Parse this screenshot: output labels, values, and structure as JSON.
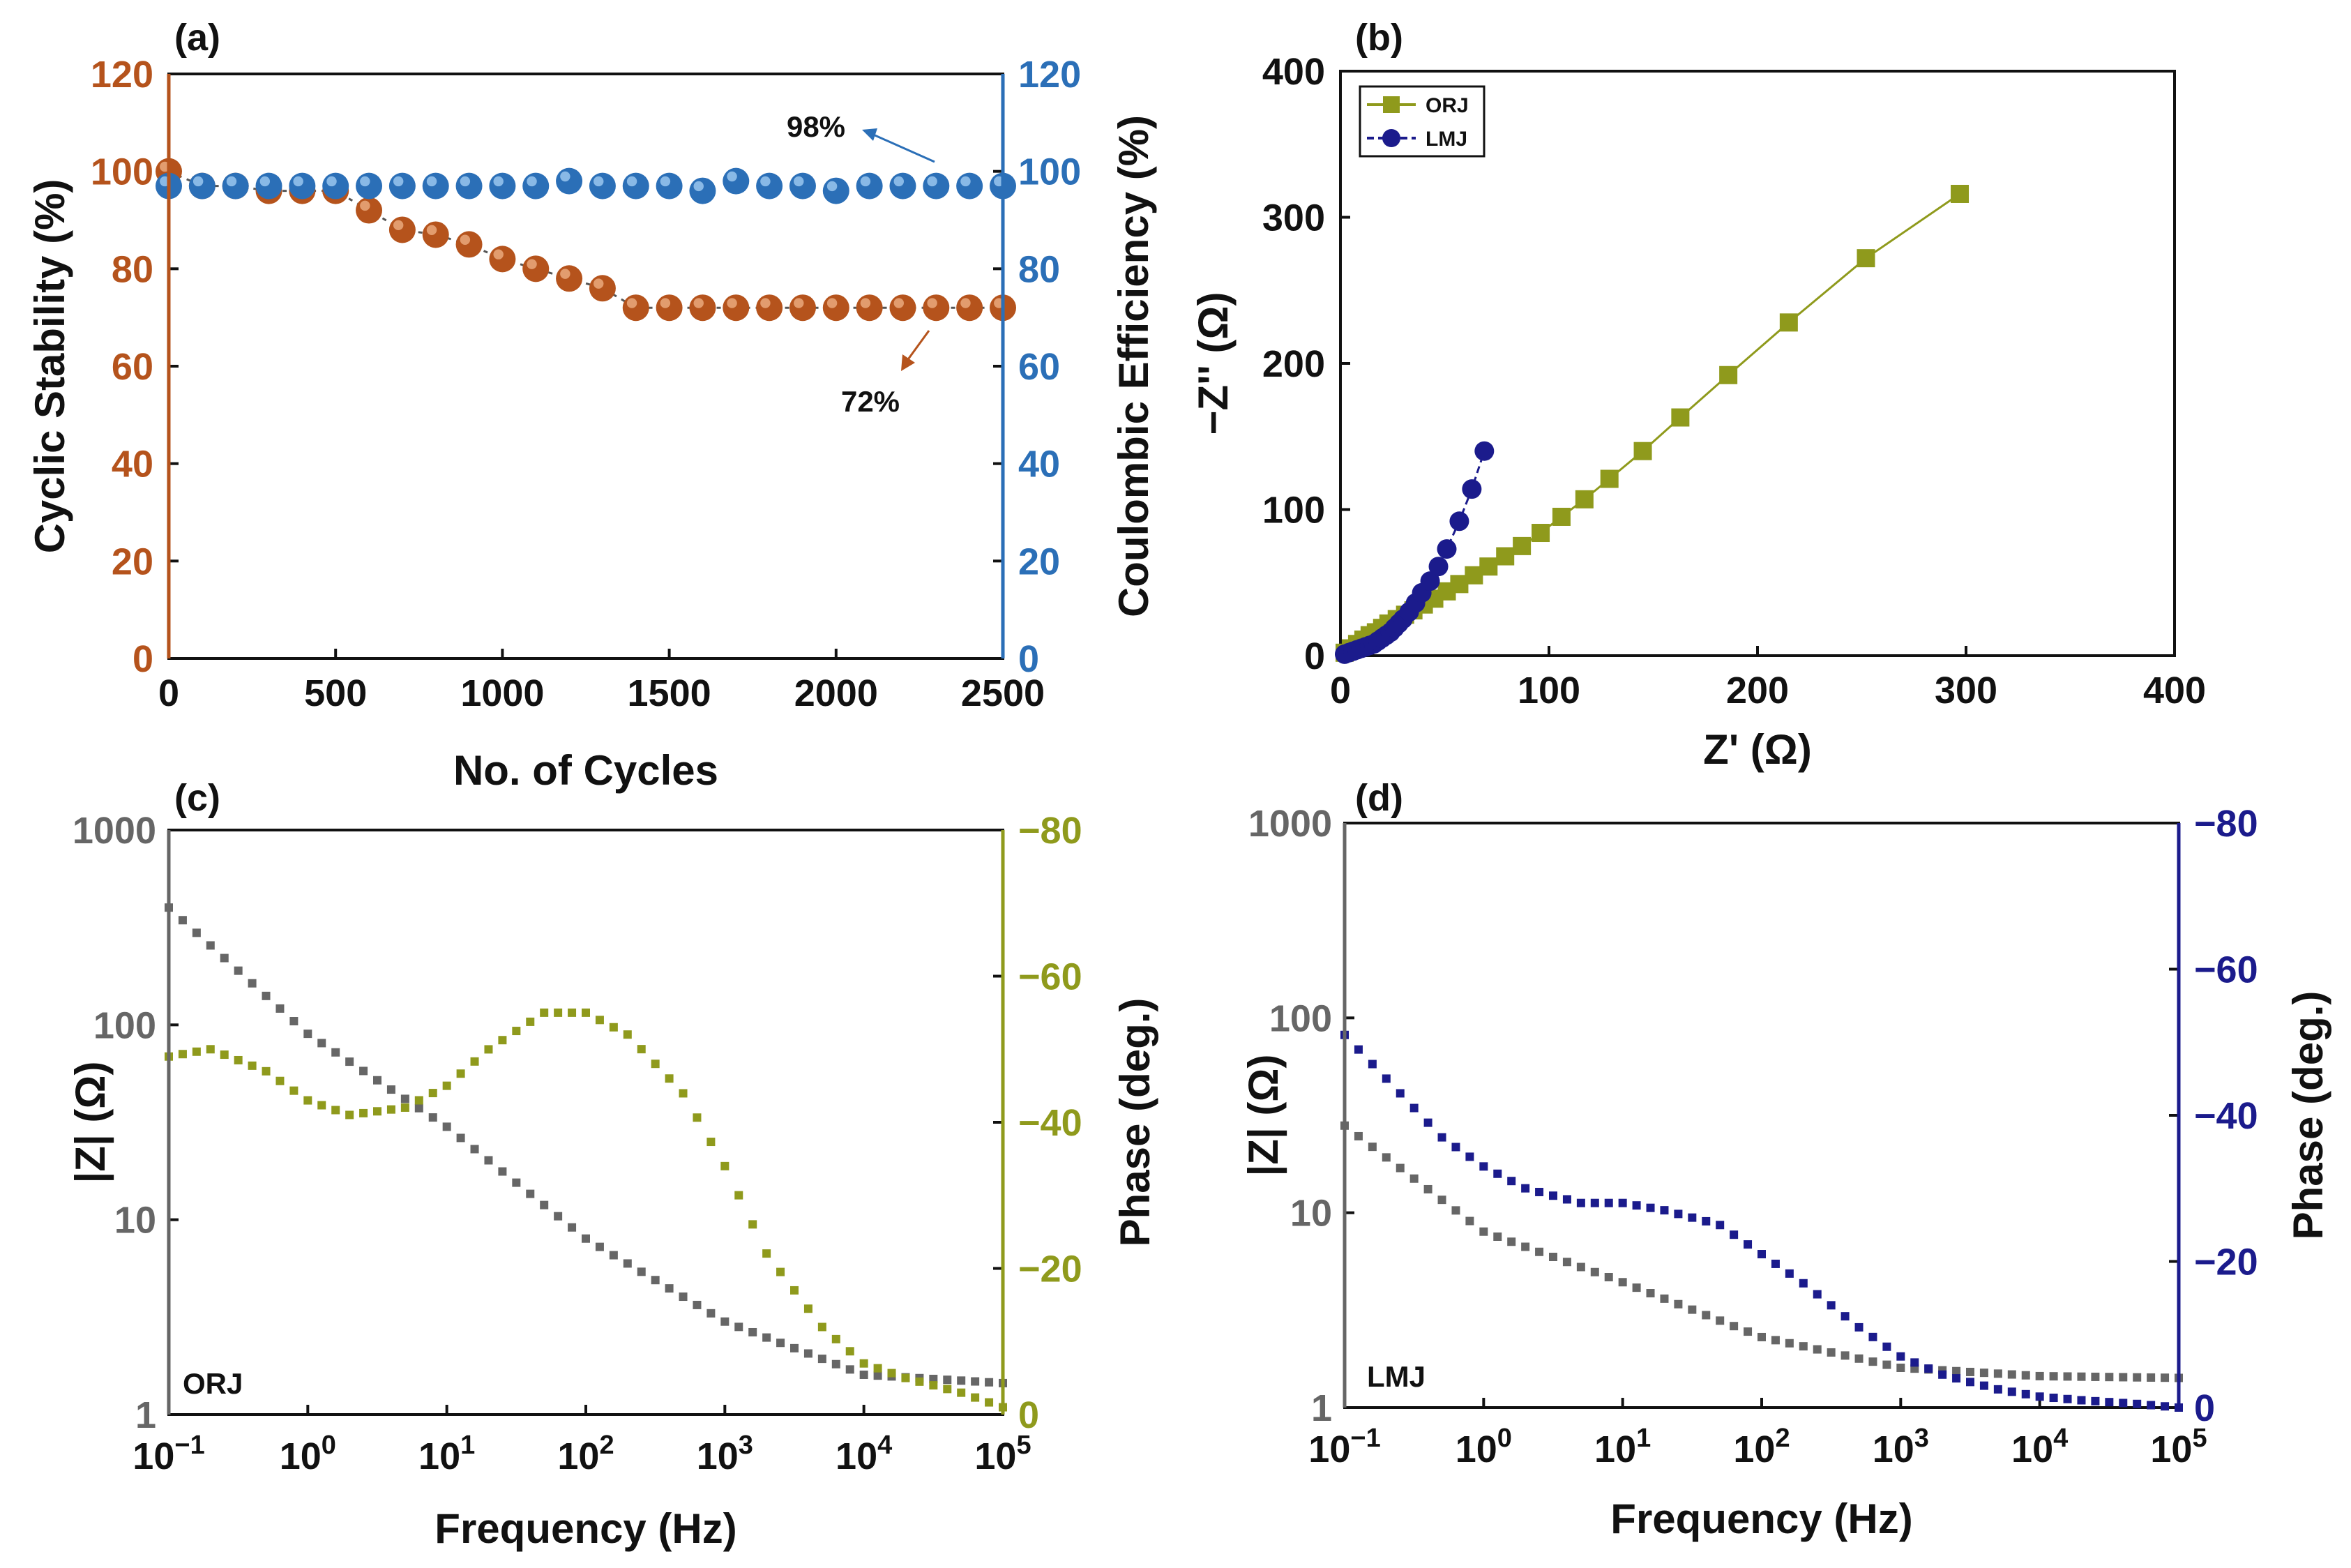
{
  "colors": {
    "orange": "#B5531C",
    "blue": "#2B6FB7",
    "olive": "#8F9A1C",
    "navy": "#1B1B8C",
    "gray": "#666666",
    "axis": "#111111"
  },
  "panels": {
    "a": {
      "label": "(a)"
    },
    "b": {
      "label": "(b)"
    },
    "c": {
      "label": "(c)",
      "inner_label": "ORJ"
    },
    "d": {
      "label": "(d)",
      "inner_label": "LMJ"
    }
  },
  "chart_data": [
    {
      "id": "a",
      "type": "scatter",
      "xlabel": "No. of Cycles",
      "ylabel": "Cyclic Stability (%)",
      "y2label": "Coulombic Efficiency (%)",
      "xlim": [
        0,
        2500
      ],
      "ylim": [
        0,
        120
      ],
      "y2lim": [
        0,
        120
      ],
      "xticks": [
        "0",
        "500",
        "1000",
        "1500",
        "2000",
        "2500"
      ],
      "yticks": [
        "0",
        "20",
        "40",
        "60",
        "80",
        "100",
        "120"
      ],
      "y2ticks": [
        "0",
        "20",
        "40",
        "60",
        "80",
        "100",
        "120"
      ],
      "annotations": [
        "98%",
        "72%"
      ],
      "series": [
        {
          "axis": "left",
          "x": [
            0,
            100,
            200,
            300,
            400,
            500,
            600,
            700,
            800,
            900,
            1000,
            1100,
            1200,
            1300,
            1400,
            1500,
            1600,
            1700,
            1800,
            1900,
            2000,
            2100,
            2200,
            2300,
            2400,
            2500
          ],
          "values": [
            100,
            97,
            97,
            96,
            96,
            96,
            92,
            88,
            87,
            85,
            82,
            80,
            78,
            76,
            72,
            72,
            72,
            72,
            72,
            72,
            72,
            72,
            72,
            72,
            72,
            72
          ]
        },
        {
          "axis": "right",
          "x": [
            0,
            100,
            200,
            300,
            400,
            500,
            600,
            700,
            800,
            900,
            1000,
            1100,
            1200,
            1300,
            1400,
            1500,
            1600,
            1700,
            1800,
            1900,
            2000,
            2100,
            2200,
            2300,
            2400,
            2500
          ],
          "values": [
            97,
            97,
            97,
            97,
            97,
            97,
            97,
            97,
            97,
            97,
            97,
            97,
            98,
            97,
            97,
            97,
            96,
            98,
            97,
            97,
            96,
            97,
            97,
            97,
            97,
            97
          ]
        }
      ]
    },
    {
      "id": "b",
      "type": "line",
      "xlabel": "Z' (Ω)",
      "ylabel": "−Z'' (Ω)",
      "xlim": [
        0,
        400
      ],
      "ylim": [
        0,
        400
      ],
      "xticks": [
        "0",
        "100",
        "200",
        "300",
        "400"
      ],
      "yticks": [
        "0",
        "100",
        "200",
        "300",
        "400"
      ],
      "legend": "top-left",
      "series": [
        {
          "name": "ORJ",
          "x": [
            2,
            5,
            8,
            11,
            14,
            17,
            20,
            23,
            27,
            31,
            35,
            40,
            45,
            51,
            57,
            64,
            71,
            79,
            87,
            96,
            106,
            117,
            129,
            145,
            163,
            186,
            215,
            252,
            297
          ],
          "values": [
            2,
            5,
            8,
            11,
            14,
            16,
            19,
            22,
            25,
            28,
            31,
            35,
            39,
            44,
            49,
            55,
            61,
            68,
            75,
            84,
            95,
            107,
            121,
            140,
            163,
            192,
            228,
            272,
            316
          ]
        },
        {
          "name": "LMJ",
          "x": [
            2,
            4,
            6,
            8,
            10,
            12,
            14,
            16,
            18,
            20,
            22,
            24,
            26,
            28,
            30,
            33,
            36,
            39,
            43,
            47,
            51,
            57,
            63,
            69
          ],
          "values": [
            1,
            2,
            3,
            4,
            5,
            6,
            7,
            8,
            10,
            12,
            14,
            16,
            19,
            22,
            25,
            30,
            36,
            43,
            51,
            61,
            73,
            92,
            114,
            140
          ]
        }
      ]
    },
    {
      "id": "c",
      "type": "scatter",
      "xlabel": "Frequency (Hz)",
      "ylabel": "|Z| (Ω)",
      "y2label": "Phase (deg.)",
      "xscale": "log",
      "yscale": "log",
      "xlim": [
        0.1,
        100000
      ],
      "ylim": [
        1,
        1000
      ],
      "y2lim": [
        0,
        -80
      ],
      "xticks": [
        "10−1",
        "100",
        "101",
        "102",
        "103",
        "104",
        "105"
      ],
      "yticks": [
        "1",
        "10",
        "100",
        "1000"
      ],
      "y2ticks": [
        "0",
        "−20",
        "−40",
        "−60",
        "−80"
      ],
      "series": [
        {
          "axis": "left",
          "x": [
            0.1,
            1,
            10,
            100,
            1000,
            10000,
            100000
          ],
          "values": [
            400,
            90,
            30,
            8,
            3,
            1.6,
            1.45
          ]
        },
        {
          "axis": "right",
          "x": [
            0.1,
            0.2,
            0.5,
            1,
            2,
            5,
            10,
            20,
            50,
            100,
            200,
            500,
            1000,
            2000,
            5000,
            10000,
            20000,
            50000,
            100000
          ],
          "values": [
            -49,
            -50,
            -47,
            -43,
            -41,
            -42,
            -45,
            -50,
            -55,
            -55,
            -52,
            -44,
            -34,
            -22,
            -12,
            -7,
            -5,
            -3,
            -1
          ]
        }
      ]
    },
    {
      "id": "d",
      "type": "scatter",
      "xlabel": "Frequency (Hz)",
      "ylabel": "|Z| (Ω)",
      "y2label": "Phase (deg.)",
      "xscale": "log",
      "yscale": "log",
      "xlim": [
        0.1,
        100000
      ],
      "ylim": [
        1,
        1000
      ],
      "y2lim": [
        0,
        -80
      ],
      "xticks": [
        "10−1",
        "100",
        "101",
        "102",
        "103",
        "104",
        "105"
      ],
      "yticks": [
        "1",
        "10",
        "100",
        "1000"
      ],
      "y2ticks": [
        "0",
        "−20",
        "−40",
        "−60",
        "−80"
      ],
      "series": [
        {
          "axis": "left",
          "x": [
            0.1,
            1,
            10,
            100,
            1000,
            10000,
            100000
          ],
          "values": [
            28,
            8,
            4.4,
            2.3,
            1.6,
            1.45,
            1.42
          ]
        },
        {
          "axis": "right",
          "x": [
            0.1,
            0.2,
            0.5,
            1,
            2,
            5,
            10,
            20,
            50,
            100,
            200,
            500,
            1000,
            2000,
            5000,
            10000,
            20000,
            50000,
            100000
          ],
          "values": [
            -51,
            -45,
            -37,
            -33,
            -30,
            -28,
            -28,
            -27,
            -25,
            -21,
            -17,
            -11,
            -7,
            -4.5,
            -2.5,
            -1.5,
            -1,
            -0.5,
            0
          ]
        }
      ]
    }
  ]
}
